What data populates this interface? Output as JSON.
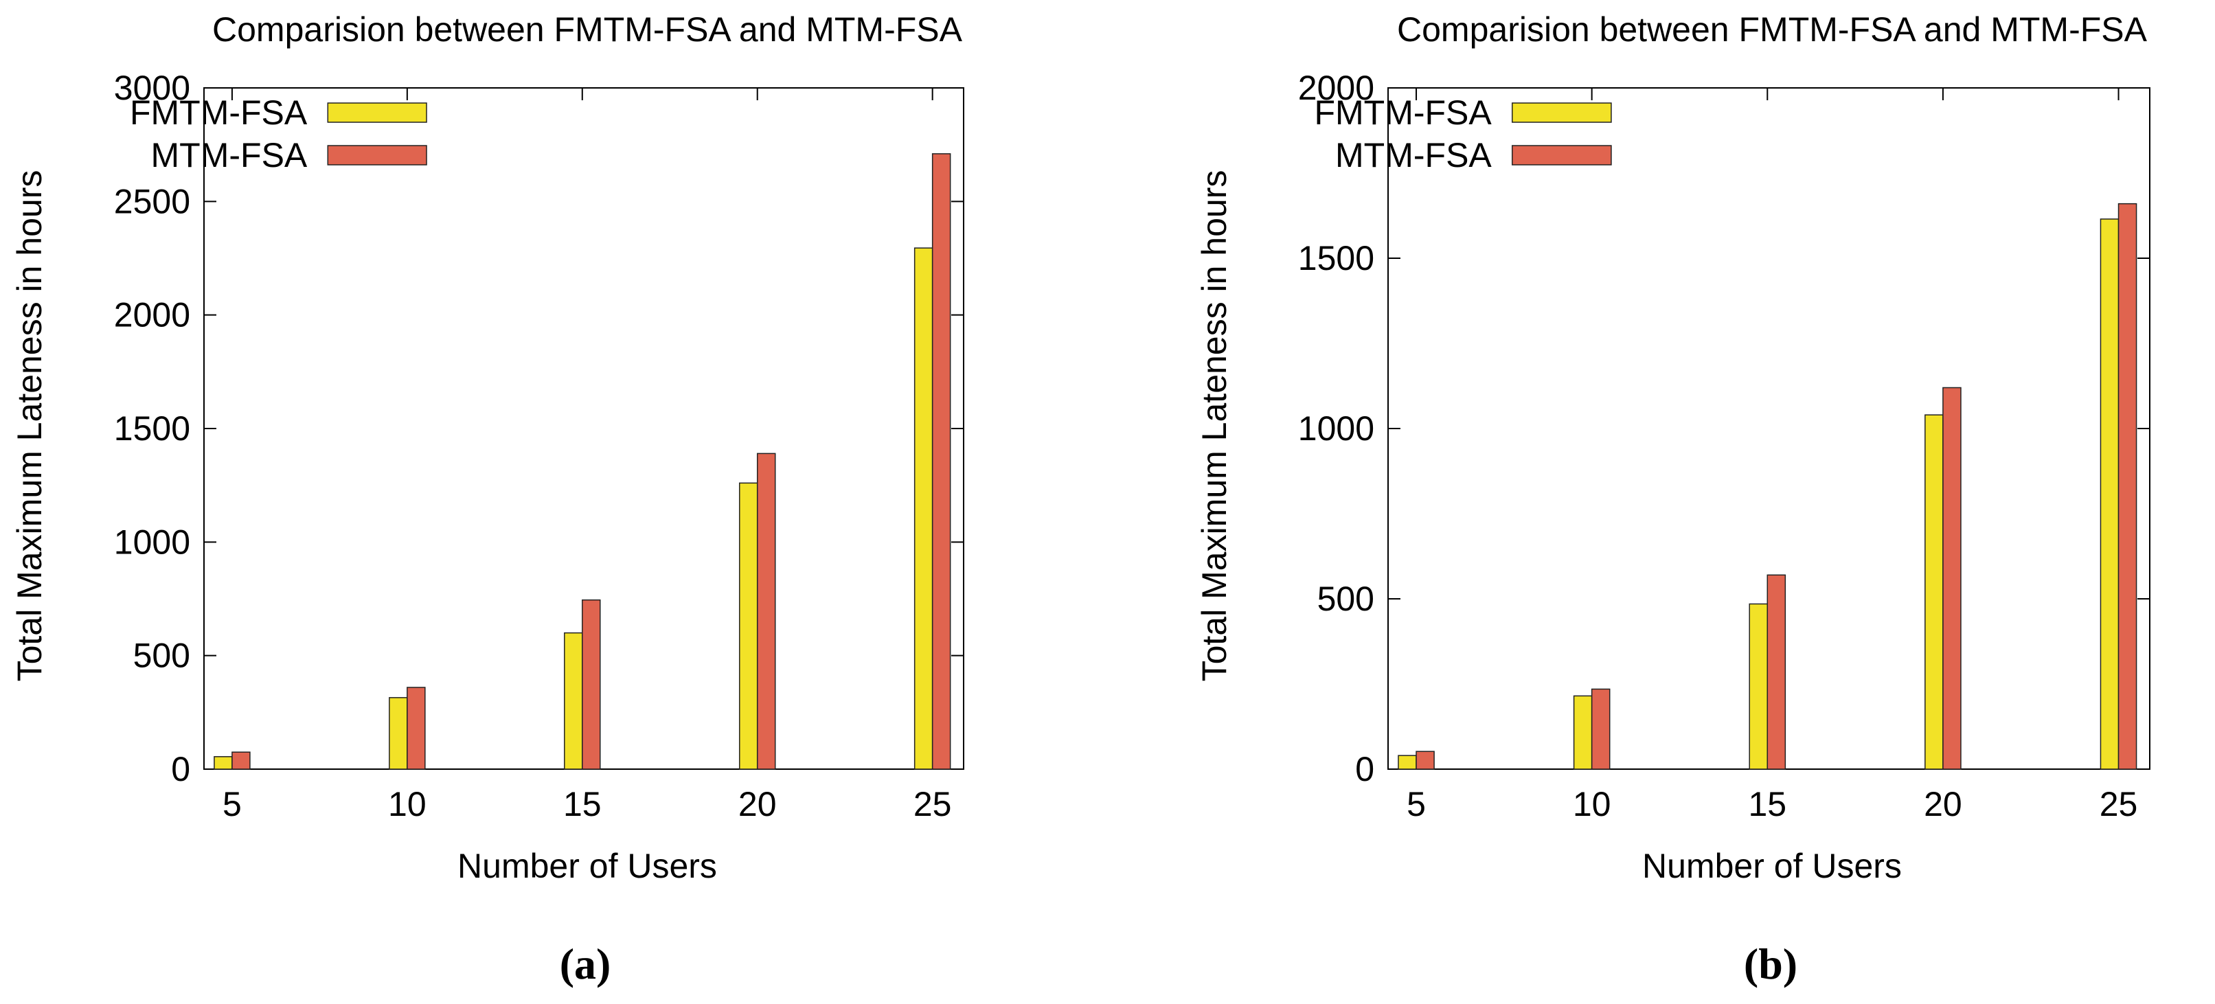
{
  "colors": {
    "fmtm": "#f2e227",
    "mtm": "#e0644f",
    "axis": "#000000"
  },
  "chart_data": [
    {
      "type": "bar",
      "title": "Comparision between FMTM-FSA and MTM-FSA",
      "xlabel": "Number of Users",
      "ylabel": "Total Maximum Lateness in hours",
      "categories": [
        "5",
        "10",
        "15",
        "20",
        "25"
      ],
      "series": [
        {
          "name": "FMTM-FSA",
          "values": [
            55,
            315,
            600,
            1260,
            2295
          ]
        },
        {
          "name": "MTM-FSA",
          "values": [
            75,
            360,
            745,
            1390,
            2710
          ]
        }
      ],
      "ylim": [
        0,
        3000
      ],
      "yticks": [
        "0",
        "500",
        "1000",
        "1500",
        "2000",
        "2500",
        "3000"
      ],
      "legend_position": "top-left",
      "grid": false,
      "caption": "(a)"
    },
    {
      "type": "bar",
      "title": "Comparision between FMTM-FSA and MTM-FSA",
      "xlabel": "Number of Users",
      "ylabel": "Total Maximum Lateness in hours",
      "categories": [
        "5",
        "10",
        "15",
        "20",
        "25"
      ],
      "series": [
        {
          "name": "FMTM-FSA",
          "values": [
            40,
            215,
            485,
            1040,
            1615
          ]
        },
        {
          "name": "MTM-FSA",
          "values": [
            52,
            235,
            570,
            1120,
            1660
          ]
        }
      ],
      "ylim": [
        0,
        2000
      ],
      "yticks": [
        "0",
        "500",
        "1000",
        "1500",
        "2000"
      ],
      "legend_position": "top-left",
      "grid": false,
      "caption": "(b)"
    }
  ]
}
